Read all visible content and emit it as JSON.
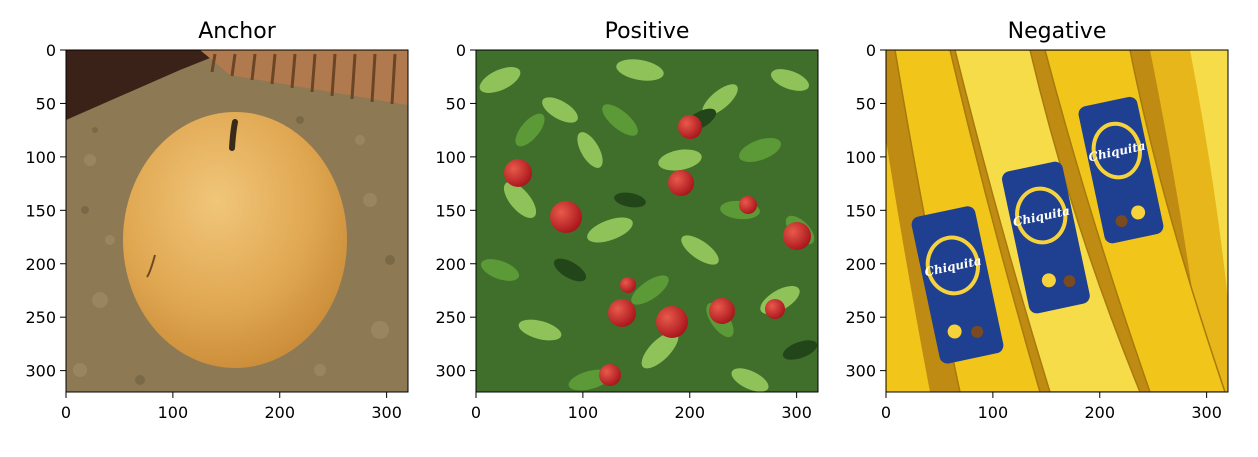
{
  "chart_data": [
    {
      "type": "image",
      "title": "Anchor",
      "xlim": [
        0,
        320
      ],
      "ylim": [
        320,
        0
      ],
      "xticks": [
        0,
        100,
        200,
        300
      ],
      "yticks": [
        0,
        50,
        100,
        150,
        200,
        250,
        300
      ],
      "subject": "pear",
      "colors": {
        "top_left": "#3b2218",
        "wood": "#b07a4e",
        "granite": "#8d7a55",
        "fruit": "#e0a751",
        "fruit_light": "#f0c67a",
        "fruit_dark": "#c98a36",
        "stem": "#3a2a18"
      }
    },
    {
      "type": "image",
      "title": "Positive",
      "xlim": [
        0,
        320
      ],
      "ylim": [
        320,
        0
      ],
      "xticks": [
        0,
        100,
        200,
        300
      ],
      "yticks": [
        0,
        50,
        100,
        150,
        200,
        250,
        300
      ],
      "subject": "apples-on-tree",
      "colors": {
        "background": "#3f6f2a",
        "leaf_light": "#8fc35a",
        "leaf_mid": "#5b9a37",
        "leaf_dark": "#23451a",
        "fruit": "#c81d26",
        "fruit_light": "#e85a4a"
      }
    },
    {
      "type": "image",
      "title": "Negative",
      "xlim": [
        0,
        320
      ],
      "ylim": [
        320,
        0
      ],
      "xticks": [
        0,
        100,
        200,
        300
      ],
      "yticks": [
        0,
        50,
        100,
        150,
        200,
        250,
        300
      ],
      "subject": "bananas",
      "sticker_text": "Chiquita",
      "colors": {
        "background": "#c08b12",
        "banana": "#f1c519",
        "banana_light": "#f7dc4a",
        "banana_edge": "#a77a0c",
        "sticker": "#1f3f91",
        "sticker_text": "#ffffff",
        "sticker_accent": "#f6d33c"
      }
    }
  ]
}
